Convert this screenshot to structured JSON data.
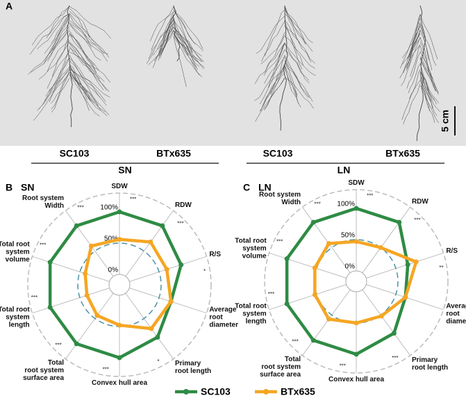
{
  "panel_a": {
    "label": "A",
    "scale_bar": "5 cm",
    "groups": [
      {
        "name": "SN",
        "lines": [
          "SC103",
          "BTx635"
        ]
      },
      {
        "name": "LN",
        "lines": [
          "SC103",
          "BTx635"
        ]
      }
    ]
  },
  "chart_data": [
    {
      "type": "radar",
      "panel": "B",
      "title": "SN",
      "categories": [
        "SDW",
        "RDW",
        "R/S",
        "Average\nroot\ndiameter",
        "Primary\nroot length",
        "Convex hull area",
        "Total\nroot system\nsurface area",
        "Total root\nsystem\nlength",
        "Total root\nsystem\nvolume",
        "Root system\nWidth"
      ],
      "significance": [
        "***",
        "***",
        "*",
        null,
        "*",
        "***",
        "***",
        "***",
        "***",
        "***"
      ],
      "series": [
        {
          "name": "SC103",
          "color": "#2e8b44",
          "values": [
            100,
            100,
            87,
            70,
            87,
            100,
            100,
            100,
            100,
            100
          ]
        },
        {
          "name": "BTx635",
          "color": "#f5a623",
          "values": [
            56,
            68,
            63,
            70,
            70,
            48,
            44,
            38,
            41,
            60
          ]
        }
      ],
      "rlim": [
        0,
        130
      ],
      "rticks": [
        {
          "value": 0,
          "label": "0%"
        },
        {
          "value": 50,
          "label": "50%"
        },
        {
          "value": 100,
          "label": "100%"
        }
      ]
    },
    {
      "type": "radar",
      "panel": "C",
      "title": "LN",
      "categories": [
        "SDW",
        "RDW",
        "R/S",
        "Average\nroot\ndiameter",
        "Primary\nroot length",
        "Convex hull area",
        "Total\nroot system\nsurface area",
        "Total root\nsystem\nlength",
        "Total root\nsystem\nvolume",
        "Root system\nWidth"
      ],
      "significance": [
        "***",
        "***",
        "**",
        null,
        "***",
        "***",
        "***",
        "***",
        "***",
        "***"
      ],
      "series": [
        {
          "name": "SC103",
          "color": "#2e8b44",
          "values": [
            100,
            100,
            70,
            66,
            86,
            100,
            100,
            100,
            100,
            100
          ]
        },
        {
          "name": "BTx635",
          "color": "#f5a623",
          "values": [
            47,
            50,
            84,
            66,
            52,
            50,
            58,
            53,
            53,
            58
          ]
        }
      ],
      "rlim": [
        0,
        130
      ],
      "rticks": [
        {
          "value": 0,
          "label": "0%"
        },
        {
          "value": 50,
          "label": "50%"
        },
        {
          "value": 100,
          "label": "100%"
        }
      ]
    }
  ]
}
